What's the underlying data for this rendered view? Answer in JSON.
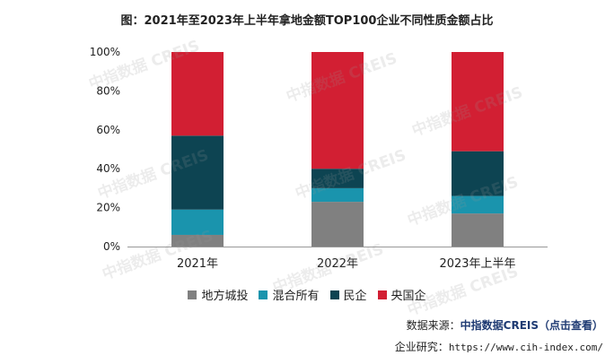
{
  "chart_data": {
    "type": "stacked-bar",
    "title": "图：2021年至2023年上半年拿地金额TOP100企业不同性质金额占比",
    "categories": [
      "2021年",
      "2022年",
      "2023年上半年"
    ],
    "ylim": [
      0,
      100
    ],
    "yticks": [
      "0%",
      "20%",
      "40%",
      "60%",
      "80%",
      "100%"
    ],
    "legend_position": "bottom",
    "grid": false,
    "series": [
      {
        "name": "地方城投",
        "color": "#808080",
        "values": [
          6,
          23,
          17
        ]
      },
      {
        "name": "混合所有",
        "color": "#1a94ad",
        "values": [
          13,
          7,
          9
        ]
      },
      {
        "name": "民企",
        "color": "#0d4452",
        "values": [
          38,
          10,
          23
        ]
      },
      {
        "name": "央国企",
        "color": "#d21f33",
        "values": [
          43,
          60,
          51
        ]
      }
    ]
  },
  "source": {
    "label": "数据来源：",
    "name": "中指数据CREIS（点击查看）"
  },
  "site": {
    "label": "企业研究：",
    "url": "https://www.cih-index.com/"
  },
  "watermark": "中指数据 CREIS"
}
